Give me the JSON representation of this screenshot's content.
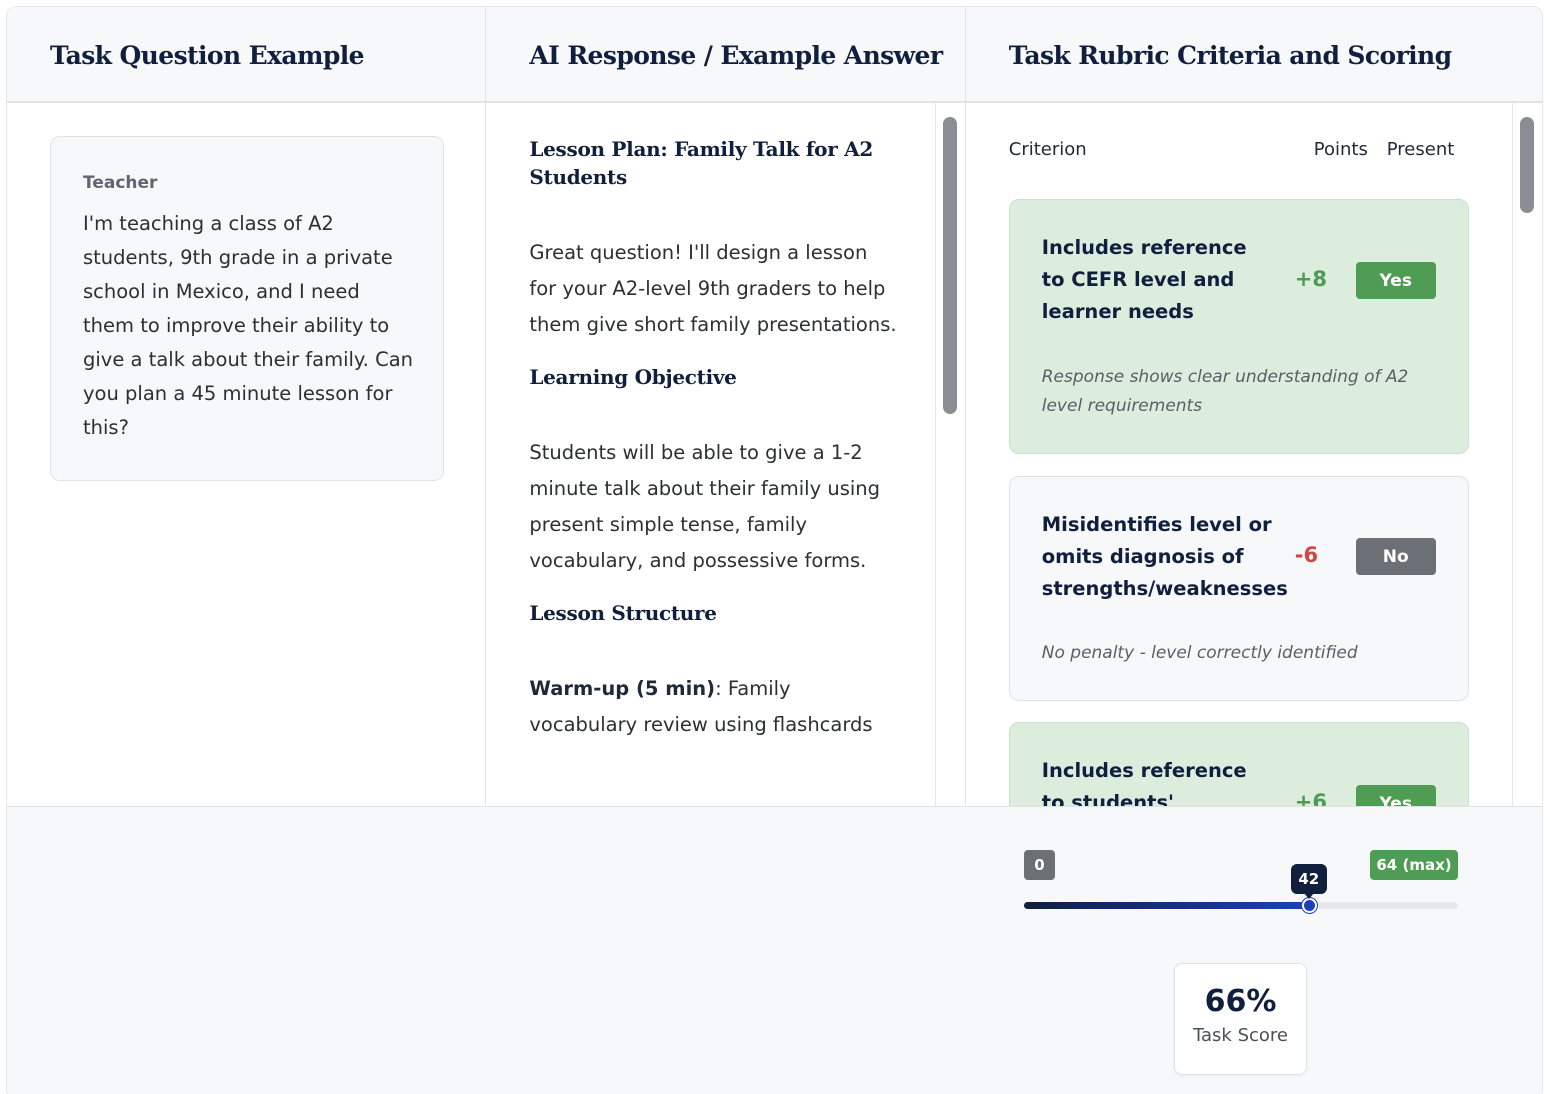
{
  "headers": {
    "question": "Task Question Example",
    "response": "AI Response / Example Answer",
    "rubric": "Task Rubric Criteria and Scoring"
  },
  "question": {
    "speaker": "Teacher",
    "text": "I'm teaching a class of A2 students, 9th grade in a private school in Mexico, and I need them to improve their ability to give a talk about their family. Can you plan a 45 minute lesson for this?"
  },
  "response": {
    "title": "Lesson Plan: Family Talk for A2 Students",
    "intro": "Great question! I'll design a lesson for your A2-level 9th graders to help them give short family presentations.",
    "objective_heading": "Learning Objective",
    "objective_text": "Students will be able to give a 1-2 minute talk about their family using present simple tense, family vocabulary, and possessive forms.",
    "structure_heading": "Lesson Structure",
    "warmup_label": "Warm-up (5 min)",
    "warmup_text": ": Family vocabulary review using flashcards"
  },
  "rubric": {
    "col_criterion": "Criterion",
    "col_points": "Points",
    "col_present": "Present",
    "criteria": [
      {
        "title": "Includes reference to CEFR level and learner needs",
        "points": "+8",
        "present": "Yes",
        "note": "Response shows clear understanding of A2 level requirements"
      },
      {
        "title": "Misidentifies level or omits diagnosis of strengths/weaknesses",
        "points": "-6",
        "present": "No",
        "note": "No penalty - level correctly identified"
      },
      {
        "title": "Includes reference to students' background",
        "points": "+6",
        "present": "Yes",
        "note": ""
      }
    ]
  },
  "score": {
    "min_label": "0",
    "max_label": "64 (max)",
    "value": 42,
    "max": 64,
    "value_label": "42",
    "percent_label": "66%",
    "score_label": "Task Score"
  },
  "colors": {
    "navy": "#0f1f3d",
    "green": "#4f9c54",
    "green_bg": "#dcedde",
    "red": "#d04545",
    "gray_badge": "#6b7077",
    "slider_accent": "#1d3fbd"
  }
}
